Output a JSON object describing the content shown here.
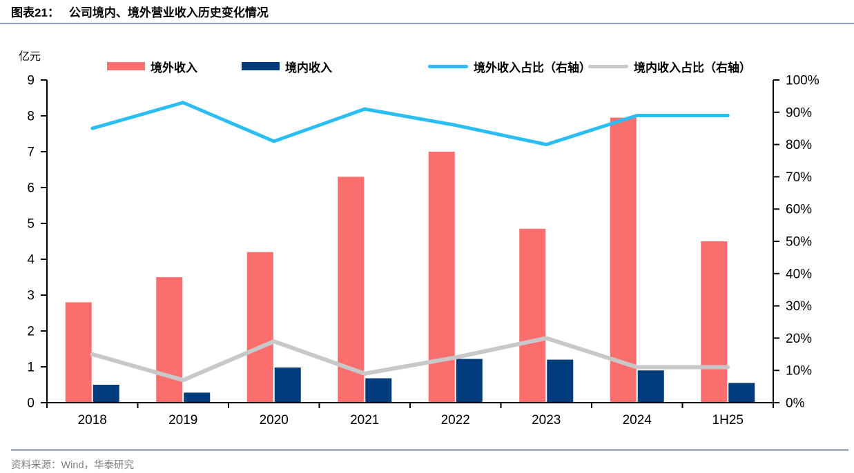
{
  "figure": {
    "title_prefix": "图表21：",
    "title": "公司境内、境外营业收入历史变化情况",
    "source_label": "资料来源：",
    "source_text": "Wind，华泰研究"
  },
  "chart_data": {
    "type": "bar",
    "subtype": "grouped bars with two overlay lines on secondary axis",
    "unit_label": "亿元",
    "categories": [
      "2018",
      "2019",
      "2020",
      "2021",
      "2022",
      "2023",
      "2024",
      "1H25"
    ],
    "bar_series": [
      {
        "id": "overseas-revenue",
        "name": "境外收入",
        "color": "#FA6E6E",
        "axis": "left",
        "values": [
          2.8,
          3.5,
          4.2,
          6.3,
          7.0,
          4.85,
          7.95,
          4.5
        ]
      },
      {
        "id": "domestic-revenue",
        "name": "境内收入",
        "color": "#003B7C",
        "axis": "left",
        "values": [
          0.5,
          0.28,
          0.98,
          0.68,
          1.22,
          1.2,
          0.9,
          0.55
        ]
      }
    ],
    "line_series": [
      {
        "id": "overseas-share",
        "name": "境外收入占比（右轴）",
        "color": "#2CBEF2",
        "axis": "right",
        "values": [
          85,
          93,
          81,
          91,
          86,
          80,
          89,
          89
        ]
      },
      {
        "id": "domestic-share",
        "name": "境内收入占比（右轴）",
        "color": "#C8C8C8",
        "axis": "right",
        "values": [
          15,
          7,
          19,
          9,
          14,
          20,
          11,
          11
        ]
      }
    ],
    "left_axis": {
      "label": "亿元",
      "min": 0,
      "max": 9,
      "step": 1,
      "ticks": [
        "0",
        "1",
        "2",
        "3",
        "4",
        "5",
        "6",
        "7",
        "8",
        "9"
      ]
    },
    "right_axis": {
      "min": 0,
      "max": 100,
      "step": 10,
      "ticks": [
        "0%",
        "10%",
        "20%",
        "30%",
        "40%",
        "50%",
        "60%",
        "70%",
        "80%",
        "90%",
        "100%"
      ]
    },
    "legend_position": "top",
    "grid": false,
    "axis_color": "#000000"
  }
}
